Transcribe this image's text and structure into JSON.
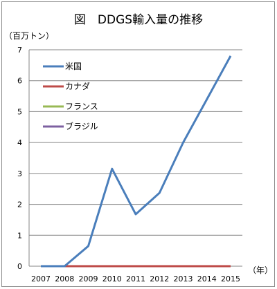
{
  "chart_data": {
    "type": "line",
    "title": "図　DDGS輸入量の推移",
    "ylabel": "（百万トン）",
    "xlabel": "（年）",
    "x": [
      "2007",
      "2008",
      "2009",
      "2010",
      "2011",
      "2012",
      "2013",
      "2014",
      "2015"
    ],
    "ylim": [
      0,
      7
    ],
    "yticks": [
      0,
      1,
      2,
      3,
      4,
      5,
      6,
      7
    ],
    "grid": true,
    "legend": "top-left",
    "series": [
      {
        "name": "米国",
        "color": "#4a7ebb",
        "values": [
          0,
          0,
          0.65,
          3.15,
          1.68,
          2.37,
          4.0,
          5.4,
          6.8
        ]
      },
      {
        "name": "カナダ",
        "color": "#be4b48",
        "values": [
          0,
          0,
          0,
          0,
          0,
          0,
          0,
          0,
          0
        ]
      },
      {
        "name": "フランス",
        "color": "#98b954",
        "values": [
          0,
          0,
          0,
          0,
          0,
          0,
          0,
          0,
          0
        ]
      },
      {
        "name": "ブラジル",
        "color": "#7d60a0",
        "values": [
          0,
          0,
          0,
          0,
          0,
          0,
          0,
          0,
          0
        ]
      }
    ]
  }
}
